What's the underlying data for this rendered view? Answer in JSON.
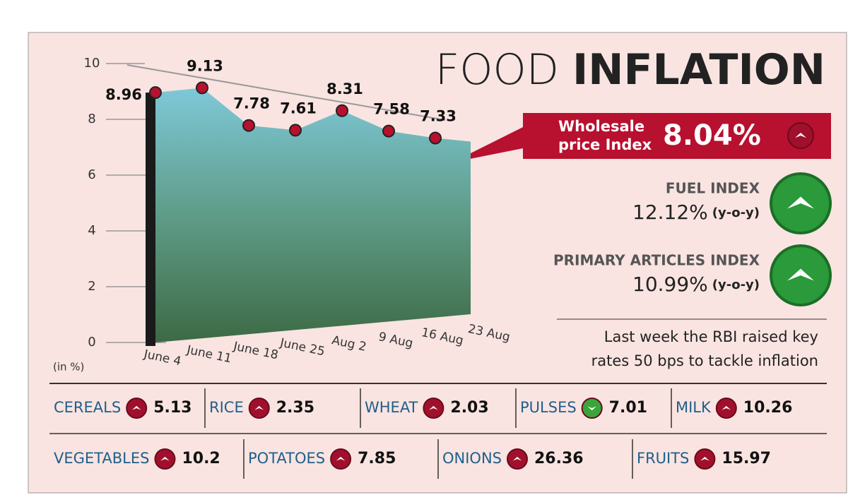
{
  "chart_data": {
    "type": "area",
    "categories": [
      "June 4",
      "June 11",
      "June 18",
      "June 25",
      "Aug 2",
      "9 Aug",
      "16 Aug",
      "23 Aug"
    ],
    "values": [
      8.96,
      9.13,
      7.78,
      7.61,
      8.31,
      7.58,
      7.33,
      null
    ],
    "color": "#b8102f",
    "ylim": [
      0,
      10
    ],
    "yticks": [
      0,
      2,
      4,
      6,
      8,
      10
    ],
    "y_label": "(in %)"
  },
  "title": {
    "light": "FOOD",
    "bold": "INFLATION"
  },
  "wholesale": {
    "label": "Wholesale price Index",
    "value": "8.04%"
  },
  "indices": [
    {
      "name": "FUEL INDEX",
      "value": "12.12%",
      "note": "(y-o-y)"
    },
    {
      "name": "PRIMARY ARTICLES INDEX",
      "value": "10.99%",
      "note": "(y-o-y)"
    }
  ],
  "note": "Last week the RBI raised key rates 50 bps to tackle inflation",
  "commodities": [
    [
      {
        "name": "CEREALS",
        "value": "5.13",
        "dir": "up"
      },
      {
        "name": "RICE",
        "value": "2.35",
        "dir": "up"
      },
      {
        "name": "WHEAT",
        "value": "2.03",
        "dir": "up"
      },
      {
        "name": "PULSES",
        "value": "7.01",
        "dir": "down"
      },
      {
        "name": "MILK",
        "value": "10.26",
        "dir": "up"
      }
    ],
    [
      {
        "name": "VEGETABLES",
        "value": "10.2",
        "dir": "up"
      },
      {
        "name": "POTATOES",
        "value": "7.85",
        "dir": "up"
      },
      {
        "name": "ONIONS",
        "value": "26.36",
        "dir": "up"
      },
      {
        "name": "FRUITS",
        "value": "15.97",
        "dir": "up"
      }
    ]
  ]
}
